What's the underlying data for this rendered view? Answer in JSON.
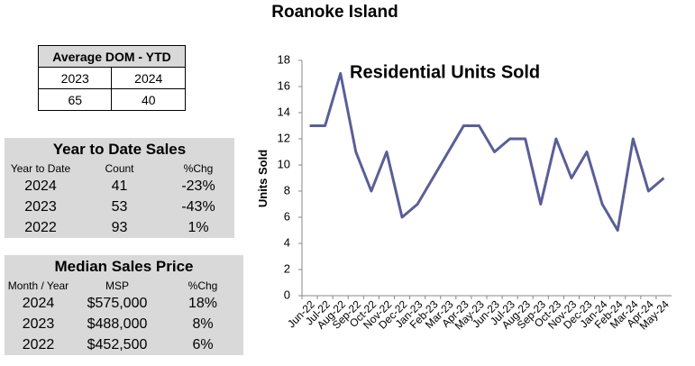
{
  "title": "Roanoke Island",
  "dom_table": {
    "title": "Average DOM - YTD",
    "header": [
      "2023",
      "2024"
    ],
    "values": [
      "65",
      "40"
    ]
  },
  "ytd_table": {
    "title": "Year to Date Sales",
    "header": [
      "Year to Date",
      "Count",
      "%Chg"
    ],
    "rows": [
      [
        "2024",
        "41",
        "-23%"
      ],
      [
        "2023",
        "53",
        "-43%"
      ],
      [
        "2022",
        "93",
        "1%"
      ]
    ]
  },
  "msp_table": {
    "title": "Median Sales Price",
    "header": [
      "Month / Year",
      "MSP",
      "%Chg"
    ],
    "rows": [
      [
        "2024",
        "$575,000",
        "18%"
      ],
      [
        "2023",
        "$488,000",
        "8%"
      ],
      [
        "2022",
        "$452,500",
        "6%"
      ]
    ]
  },
  "chart_data": {
    "type": "line",
    "title": "Residential Units Sold",
    "y_label": "Units Sold",
    "categories": [
      "Jun-22",
      "Jul-22",
      "Aug-22",
      "Sep-22",
      "Oct-22",
      "Nov-22",
      "Dec-22",
      "Jan-23",
      "Feb-23",
      "Mar-23",
      "Apr-23",
      "May-23",
      "Jun-23",
      "Jul-23",
      "Aug-23",
      "Sep-23",
      "Oct-23",
      "Nov-23",
      "Dec-23",
      "Jan-24",
      "Feb-24",
      "Mar-24",
      "Apr-24",
      "May-24"
    ],
    "values": [
      13,
      13,
      17,
      11,
      8,
      11,
      6,
      7,
      9,
      11,
      13,
      13,
      11,
      12,
      12,
      7,
      12,
      9,
      11,
      7,
      5,
      12,
      8,
      9
    ],
    "color": "#5b5e96",
    "ylim": [
      0,
      18
    ],
    "yticks": [
      0,
      2,
      4,
      6,
      8,
      10,
      12,
      14,
      16,
      18
    ],
    "grid": false
  }
}
